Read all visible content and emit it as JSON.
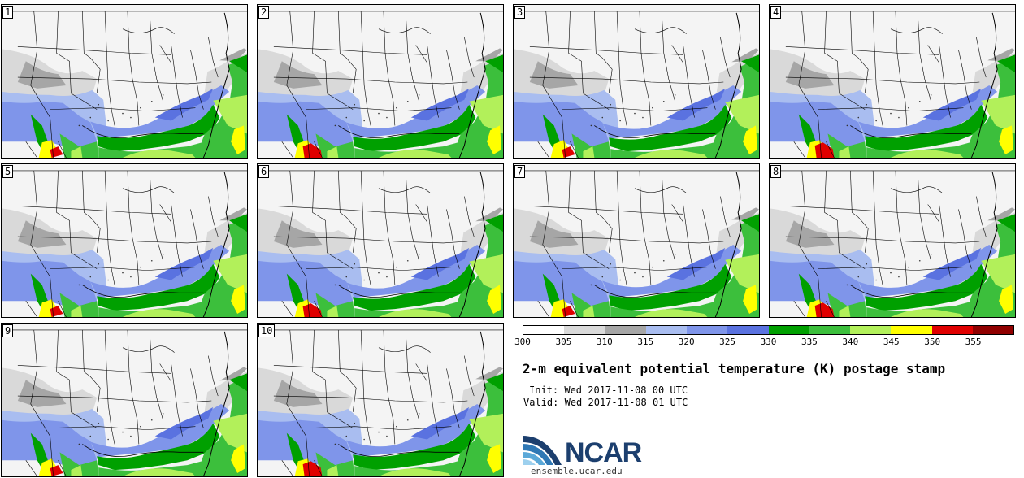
{
  "title": "2-m equivalent potential temperature (K) postage stamp",
  "init_label": "Init:",
  "init_value": "Wed 2017-11-08 00 UTC",
  "valid_label": "Valid:",
  "valid_value": "Wed 2017-11-08 01 UTC",
  "website": "ensemble.ucar.edu",
  "logo_text": "NCAR",
  "members": [
    "1",
    "2",
    "3",
    "4",
    "5",
    "6",
    "7",
    "8",
    "9",
    "10"
  ],
  "colorbar": {
    "ticks": [
      "300",
      "305",
      "310",
      "315",
      "320",
      "325",
      "330",
      "335",
      "340",
      "345",
      "350",
      "355"
    ],
    "colors": [
      "#ffffff",
      "#d9d9d9",
      "#a6a6a6",
      "#a9bdf0",
      "#7f95ea",
      "#5a72e0",
      "#00a000",
      "#3cbf3c",
      "#b2f05a",
      "#ffff00",
      "#e00000",
      "#900000"
    ]
  },
  "colors": {
    "white": "#f4f4f4",
    "light_gray": "#d9d9d9",
    "gray": "#a6a6a6",
    "light_blue": "#a9bdf0",
    "blue": "#7f95ea",
    "dark_blue": "#5a72e0",
    "dark_green": "#00a000",
    "green": "#3cbf3c",
    "light_green": "#b2f05a",
    "yellow": "#ffff00",
    "red": "#e00000"
  }
}
